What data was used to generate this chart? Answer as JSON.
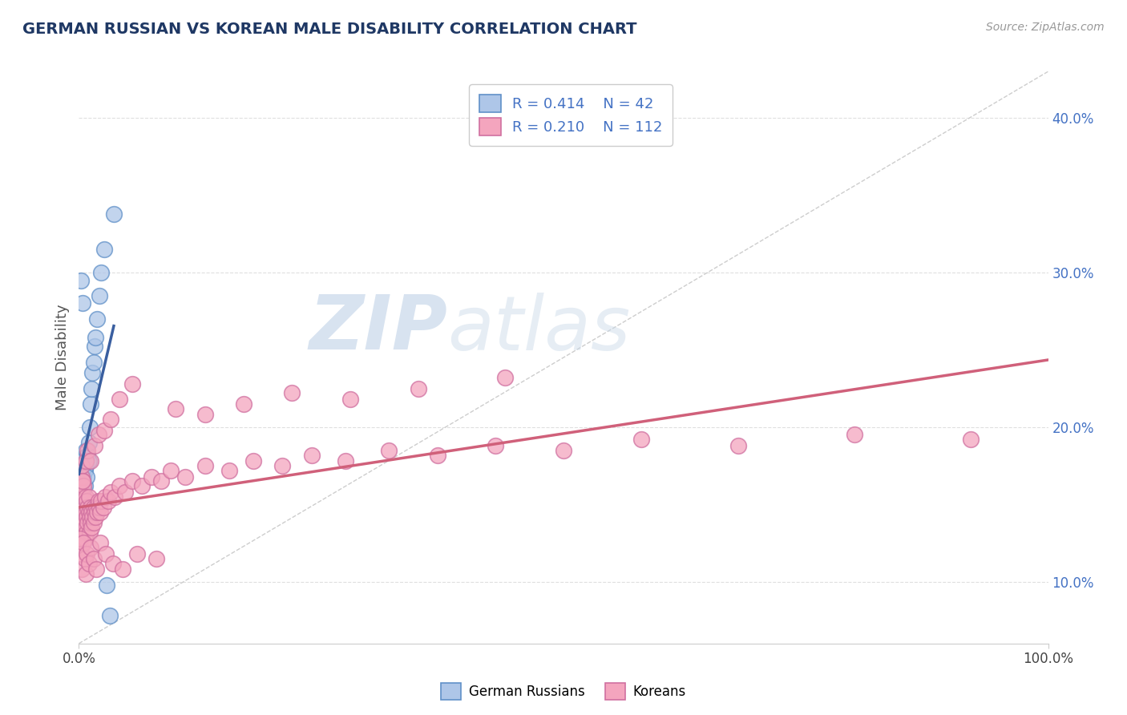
{
  "title": "GERMAN RUSSIAN VS KOREAN MALE DISABILITY CORRELATION CHART",
  "source": "Source: ZipAtlas.com",
  "ylabel": "Male Disability",
  "right_yticks": [
    "10.0%",
    "20.0%",
    "30.0%",
    "40.0%"
  ],
  "right_ytick_vals": [
    0.1,
    0.2,
    0.3,
    0.4
  ],
  "legend_entries": [
    {
      "label": "German Russians",
      "R": 0.414,
      "N": 42,
      "color": "#aec6e8"
    },
    {
      "label": "Koreans",
      "R": 0.21,
      "N": 112,
      "color": "#f4a5be"
    }
  ],
  "watermark_zip": "ZIP",
  "watermark_atlas": "atlas",
  "blue_line_color": "#3a5fa0",
  "pink_line_color": "#d0607a",
  "dashed_line_color": "#c8c8c8",
  "background_color": "#ffffff",
  "plot_bg_color": "#ffffff",
  "grid_color": "#d8d8d8",
  "title_color": "#1F3864",
  "xlim": [
    0.0,
    1.0
  ],
  "ylim": [
    0.06,
    0.43
  ],
  "german_russian_x": [
    0.001,
    0.001,
    0.001,
    0.002,
    0.002,
    0.002,
    0.002,
    0.003,
    0.003,
    0.003,
    0.003,
    0.004,
    0.004,
    0.004,
    0.005,
    0.005,
    0.005,
    0.006,
    0.006,
    0.007,
    0.007,
    0.008,
    0.008,
    0.009,
    0.01,
    0.01,
    0.011,
    0.012,
    0.013,
    0.014,
    0.015,
    0.016,
    0.017,
    0.019,
    0.021,
    0.023,
    0.026,
    0.029,
    0.032,
    0.036,
    0.002,
    0.004
  ],
  "german_russian_y": [
    0.155,
    0.145,
    0.165,
    0.148,
    0.158,
    0.165,
    0.155,
    0.16,
    0.152,
    0.17,
    0.162,
    0.158,
    0.165,
    0.175,
    0.16,
    0.168,
    0.18,
    0.172,
    0.162,
    0.175,
    0.185,
    0.178,
    0.168,
    0.182,
    0.19,
    0.178,
    0.2,
    0.215,
    0.225,
    0.235,
    0.242,
    0.252,
    0.258,
    0.27,
    0.285,
    0.3,
    0.315,
    0.098,
    0.078,
    0.338,
    0.295,
    0.28
  ],
  "korean_x": [
    0.001,
    0.001,
    0.001,
    0.002,
    0.002,
    0.002,
    0.002,
    0.003,
    0.003,
    0.003,
    0.003,
    0.003,
    0.004,
    0.004,
    0.004,
    0.004,
    0.005,
    0.005,
    0.005,
    0.005,
    0.006,
    0.006,
    0.006,
    0.007,
    0.007,
    0.007,
    0.008,
    0.008,
    0.008,
    0.009,
    0.009,
    0.01,
    0.01,
    0.011,
    0.011,
    0.012,
    0.012,
    0.013,
    0.013,
    0.014,
    0.015,
    0.015,
    0.016,
    0.017,
    0.018,
    0.019,
    0.02,
    0.021,
    0.022,
    0.023,
    0.025,
    0.027,
    0.03,
    0.033,
    0.037,
    0.042,
    0.048,
    0.055,
    0.065,
    0.075,
    0.085,
    0.095,
    0.11,
    0.13,
    0.155,
    0.18,
    0.21,
    0.24,
    0.275,
    0.32,
    0.37,
    0.43,
    0.5,
    0.58,
    0.68,
    0.8,
    0.92,
    0.001,
    0.002,
    0.003,
    0.003,
    0.004,
    0.005,
    0.006,
    0.007,
    0.008,
    0.01,
    0.012,
    0.015,
    0.018,
    0.022,
    0.028,
    0.035,
    0.045,
    0.06,
    0.08,
    0.1,
    0.13,
    0.17,
    0.22,
    0.28,
    0.35,
    0.44,
    0.007,
    0.009,
    0.012,
    0.016,
    0.02,
    0.026,
    0.033,
    0.042,
    0.055
  ],
  "korean_y": [
    0.148,
    0.138,
    0.128,
    0.142,
    0.132,
    0.122,
    0.155,
    0.148,
    0.138,
    0.128,
    0.158,
    0.168,
    0.145,
    0.135,
    0.155,
    0.165,
    0.142,
    0.132,
    0.152,
    0.162,
    0.148,
    0.138,
    0.128,
    0.145,
    0.135,
    0.155,
    0.142,
    0.132,
    0.152,
    0.148,
    0.138,
    0.145,
    0.155,
    0.142,
    0.132,
    0.148,
    0.138,
    0.145,
    0.135,
    0.142,
    0.148,
    0.138,
    0.145,
    0.142,
    0.148,
    0.145,
    0.152,
    0.148,
    0.145,
    0.152,
    0.148,
    0.155,
    0.152,
    0.158,
    0.155,
    0.162,
    0.158,
    0.165,
    0.162,
    0.168,
    0.165,
    0.172,
    0.168,
    0.175,
    0.172,
    0.178,
    0.175,
    0.182,
    0.178,
    0.185,
    0.182,
    0.188,
    0.185,
    0.192,
    0.188,
    0.195,
    0.192,
    0.128,
    0.118,
    0.108,
    0.175,
    0.165,
    0.125,
    0.115,
    0.105,
    0.118,
    0.112,
    0.122,
    0.115,
    0.108,
    0.125,
    0.118,
    0.112,
    0.108,
    0.118,
    0.115,
    0.212,
    0.208,
    0.215,
    0.222,
    0.218,
    0.225,
    0.232,
    0.178,
    0.185,
    0.178,
    0.188,
    0.195,
    0.198,
    0.205,
    0.218,
    0.228
  ]
}
